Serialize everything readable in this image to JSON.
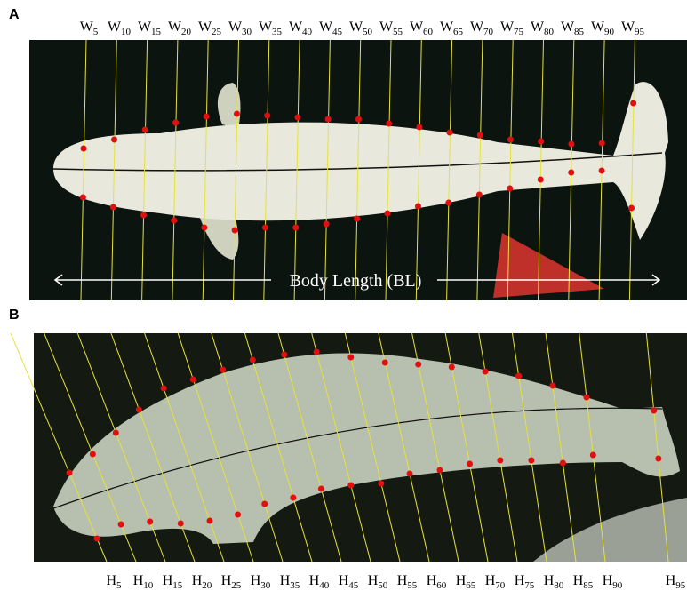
{
  "panel_a": {
    "label": "A",
    "width_labels": [
      {
        "base": "W",
        "sub": "5"
      },
      {
        "base": "W",
        "sub": "10"
      },
      {
        "base": "W",
        "sub": "15"
      },
      {
        "base": "W",
        "sub": "20"
      },
      {
        "base": "W",
        "sub": "25"
      },
      {
        "base": "W",
        "sub": "30"
      },
      {
        "base": "W",
        "sub": "35"
      },
      {
        "base": "W",
        "sub": "40"
      },
      {
        "base": "W",
        "sub": "45"
      },
      {
        "base": "W",
        "sub": "50"
      },
      {
        "base": "W",
        "sub": "55"
      },
      {
        "base": "W",
        "sub": "60"
      },
      {
        "base": "W",
        "sub": "65"
      },
      {
        "base": "W",
        "sub": "70"
      },
      {
        "base": "W",
        "sub": "75"
      },
      {
        "base": "W",
        "sub": "80"
      },
      {
        "base": "W",
        "sub": "85"
      },
      {
        "base": "W",
        "sub": "90"
      },
      {
        "base": "W",
        "sub": "95"
      }
    ],
    "body_length_label": "Body Length (BL)"
  },
  "panel_b": {
    "label": "B",
    "height_labels": [
      {
        "base": "H",
        "sub": "5"
      },
      {
        "base": "H",
        "sub": "10"
      },
      {
        "base": "H",
        "sub": "15"
      },
      {
        "base": "H",
        "sub": "20"
      },
      {
        "base": "H",
        "sub": "25"
      },
      {
        "base": "H",
        "sub": "30"
      },
      {
        "base": "H",
        "sub": "35"
      },
      {
        "base": "H",
        "sub": "40"
      },
      {
        "base": "H",
        "sub": "45"
      },
      {
        "base": "H",
        "sub": "50"
      },
      {
        "base": "H",
        "sub": "55"
      },
      {
        "base": "H",
        "sub": "60"
      },
      {
        "base": "H",
        "sub": "65"
      },
      {
        "base": "H",
        "sub": "70"
      },
      {
        "base": "H",
        "sub": "75"
      },
      {
        "base": "H",
        "sub": "80"
      },
      {
        "base": "H",
        "sub": "85"
      },
      {
        "base": "H",
        "sub": "90"
      },
      {
        "base": "H",
        "sub": "95"
      }
    ]
  }
}
